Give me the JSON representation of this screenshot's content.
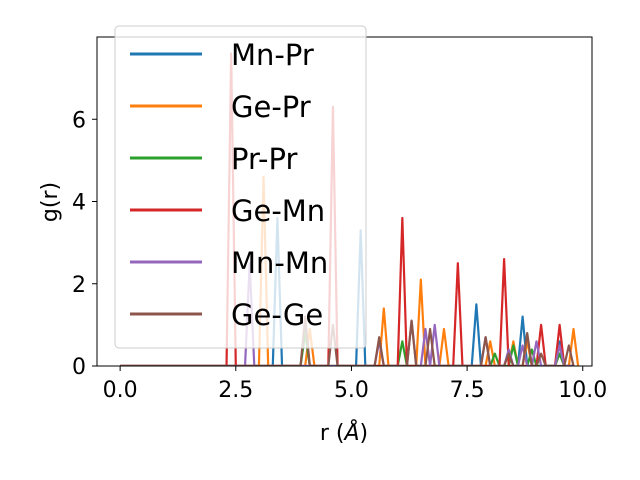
{
  "chart_data": {
    "type": "line",
    "title": "",
    "xlabel": "r (",
    "xlabel_unit": "Å",
    "xlabel_close": ")",
    "ylabel": "g(r)",
    "xlim": [
      -0.5,
      10.2
    ],
    "ylim": [
      0,
      8.0
    ],
    "xticks": [
      0.0,
      2.5,
      5.0,
      7.5,
      10.0
    ],
    "xtick_labels": [
      "0.0",
      "2.5",
      "5.0",
      "7.5",
      "10.0"
    ],
    "yticks": [
      0,
      2,
      4,
      6
    ],
    "ytick_labels": [
      "0",
      "2",
      "4",
      "6"
    ],
    "grid": false,
    "legend_placement": "upper-left",
    "series": [
      {
        "name": "Mn-Pr",
        "color": "#1f77b4",
        "x": [
          0.0,
          2.2,
          2.3,
          2.4,
          2.5,
          2.6,
          2.7,
          2.8,
          2.9,
          3.0,
          3.1,
          3.2,
          3.3,
          3.4,
          3.5,
          3.6,
          3.7,
          3.8,
          3.9,
          4.0,
          4.1,
          4.2,
          4.3,
          4.4,
          4.5,
          4.6,
          4.7,
          4.8,
          4.9,
          5.0,
          5.1,
          5.2,
          5.3,
          5.4,
          5.5,
          5.6,
          5.7,
          5.8,
          5.9,
          6.0,
          6.1,
          6.2,
          6.3,
          6.4,
          6.5,
          6.6,
          6.7,
          6.8,
          6.9,
          7.0,
          7.1,
          7.2,
          7.3,
          7.4,
          7.5,
          7.6,
          7.7,
          7.8,
          7.9,
          8.0,
          8.1,
          8.2,
          8.3,
          8.4,
          8.5,
          8.6,
          8.7,
          8.8,
          8.9,
          9.0,
          9.1,
          9.2,
          9.3,
          9.4,
          9.5,
          9.6,
          9.7,
          9.8
        ],
        "y": [
          0.0,
          0.0,
          0.0,
          0.0,
          0.0,
          0.0,
          0.0,
          0.0,
          0.0,
          0.0,
          0.0,
          0.0,
          0.0,
          3.6,
          0.0,
          0.0,
          0.0,
          0.0,
          0.0,
          1.0,
          0.0,
          0.0,
          0.0,
          0.0,
          0.0,
          0.0,
          0.0,
          0.0,
          0.0,
          0.0,
          0.0,
          3.3,
          0.0,
          0.0,
          0.0,
          0.0,
          0.0,
          0.0,
          0.0,
          0.0,
          0.0,
          0.0,
          0.0,
          0.0,
          0.0,
          0.0,
          0.0,
          0.0,
          0.0,
          0.0,
          0.0,
          0.0,
          0.0,
          0.0,
          0.0,
          0.0,
          1.5,
          0.0,
          0.0,
          0.0,
          0.0,
          0.0,
          0.0,
          0.0,
          0.0,
          0.0,
          1.2,
          0.0,
          0.0,
          0.0,
          0.0,
          0.0,
          0.0,
          0.0,
          0.6,
          0.0,
          0.0,
          0.0
        ]
      },
      {
        "name": "Ge-Pr",
        "color": "#ff7f0e",
        "x": [
          0.0,
          2.8,
          2.9,
          3.0,
          3.1,
          3.2,
          3.3,
          3.4,
          3.5,
          3.6,
          3.7,
          3.8,
          3.9,
          4.0,
          4.1,
          4.2,
          4.3,
          4.4,
          4.5,
          4.6,
          4.7,
          4.8,
          4.9,
          5.0,
          5.1,
          5.2,
          5.3,
          5.4,
          5.5,
          5.6,
          5.7,
          5.8,
          5.9,
          6.0,
          6.1,
          6.2,
          6.3,
          6.4,
          6.5,
          6.6,
          6.7,
          6.8,
          6.9,
          7.0,
          7.1,
          7.2,
          7.3,
          7.4,
          7.5,
          7.6,
          7.7,
          7.8,
          7.9,
          8.0,
          8.1,
          8.2,
          8.3,
          8.4,
          8.5,
          8.6,
          8.7,
          8.8,
          8.9,
          9.0,
          9.1,
          9.2,
          9.3,
          9.4,
          9.5,
          9.6,
          9.7,
          9.8,
          9.9
        ],
        "y": [
          0.0,
          0.0,
          0.0,
          0.0,
          4.6,
          0.0,
          0.0,
          0.0,
          0.0,
          0.0,
          0.0,
          0.0,
          0.0,
          0.0,
          0.9,
          0.0,
          0.0,
          0.0,
          0.0,
          0.0,
          0.0,
          0.0,
          0.0,
          0.0,
          0.0,
          0.0,
          0.0,
          0.0,
          0.0,
          0.0,
          1.4,
          0.0,
          0.0,
          0.0,
          0.0,
          0.0,
          0.0,
          0.0,
          2.1,
          0.0,
          0.0,
          0.0,
          0.0,
          0.9,
          0.0,
          0.0,
          0.0,
          0.0,
          0.0,
          0.0,
          0.0,
          0.0,
          0.0,
          0.6,
          0.0,
          0.0,
          0.0,
          0.0,
          0.6,
          0.0,
          0.0,
          0.6,
          0.0,
          0.0,
          0.0,
          0.0,
          0.0,
          0.0,
          0.3,
          0.0,
          0.0,
          0.9,
          0.0
        ]
      },
      {
        "name": "Pr-Pr",
        "color": "#2ca02c",
        "x": [
          0.0,
          3.9,
          4.0,
          4.1,
          4.2,
          5.9,
          6.0,
          6.1,
          6.2,
          8.0,
          8.1,
          8.2,
          8.3,
          8.4,
          8.5,
          8.6,
          8.7,
          8.8,
          8.9,
          9.0,
          9.1,
          9.2,
          9.3,
          9.4,
          9.5,
          9.6,
          9.7,
          9.8
        ],
        "y": [
          0.0,
          0.0,
          0.8,
          0.0,
          0.0,
          0.0,
          0.0,
          0.6,
          0.0,
          0.0,
          0.3,
          0.0,
          0.0,
          0.0,
          0.5,
          0.0,
          0.0,
          0.0,
          0.4,
          0.0,
          0.0,
          0.0,
          0.0,
          0.0,
          0.3,
          0.0,
          0.0,
          0.0
        ]
      },
      {
        "name": "Ge-Mn",
        "color": "#d62728",
        "x": [
          0.0,
          2.2,
          2.3,
          2.4,
          2.5,
          2.6,
          4.4,
          4.5,
          4.6,
          4.7,
          4.8,
          5.9,
          6.0,
          6.1,
          6.2,
          6.3,
          6.4,
          6.5,
          6.6,
          6.7,
          6.8,
          6.9,
          7.0,
          7.1,
          7.2,
          7.3,
          7.4,
          7.5,
          7.6,
          7.7,
          7.8,
          7.9,
          8.0,
          8.1,
          8.2,
          8.3,
          8.4,
          8.5,
          8.6,
          8.7,
          8.8,
          8.9,
          9.0,
          9.1,
          9.2,
          9.3,
          9.4,
          9.5,
          9.6,
          9.7,
          9.8
        ],
        "y": [
          0.0,
          0.0,
          0.0,
          7.6,
          0.0,
          0.0,
          0.0,
          0.0,
          6.3,
          0.0,
          0.0,
          0.0,
          0.0,
          3.6,
          0.0,
          0.0,
          0.0,
          0.0,
          0.0,
          0.0,
          0.0,
          0.0,
          0.0,
          0.0,
          0.0,
          2.5,
          0.0,
          0.0,
          0.0,
          0.0,
          0.0,
          0.0,
          0.0,
          0.0,
          0.0,
          2.6,
          0.0,
          0.0,
          0.0,
          0.0,
          0.0,
          0.0,
          0.0,
          1.0,
          0.0,
          0.0,
          0.0,
          1.0,
          0.0,
          0.0,
          0.0
        ]
      },
      {
        "name": "Mn-Mn",
        "color": "#9467bd",
        "x": [
          0.0,
          2.6,
          2.7,
          2.8,
          2.9,
          3.0,
          5.4,
          5.5,
          5.6,
          5.7,
          5.8,
          6.2,
          6.3,
          6.4,
          6.5,
          6.6,
          6.7,
          6.8,
          6.9,
          7.0,
          7.1,
          7.7,
          7.8,
          7.9,
          8.0,
          8.1,
          8.2,
          8.3,
          8.4,
          8.5,
          8.6,
          8.7,
          8.8,
          8.9,
          9.0,
          9.1,
          9.2,
          9.3,
          9.4,
          9.5,
          9.6,
          9.7,
          9.8
        ],
        "y": [
          0.0,
          0.0,
          0.0,
          2.5,
          0.0,
          0.0,
          0.0,
          0.0,
          0.6,
          0.0,
          0.0,
          0.0,
          1.1,
          0.0,
          0.0,
          0.9,
          0.0,
          1.0,
          0.0,
          0.0,
          0.0,
          0.0,
          0.0,
          0.7,
          0.0,
          0.0,
          0.0,
          0.0,
          0.4,
          0.0,
          0.0,
          0.5,
          0.0,
          0.0,
          0.6,
          0.0,
          0.0,
          0.0,
          0.0,
          0.5,
          0.0,
          0.0,
          0.0
        ]
      },
      {
        "name": "Ge-Ge",
        "color": "#8c564b",
        "x": [
          0.0,
          3.8,
          3.9,
          4.0,
          4.1,
          4.2,
          4.4,
          4.5,
          4.6,
          4.7,
          4.8,
          5.4,
          5.5,
          5.6,
          5.7,
          5.8,
          6.2,
          6.3,
          6.4,
          6.5,
          6.6,
          6.7,
          6.8,
          6.9,
          7.0,
          7.1,
          7.2,
          7.3,
          7.4,
          7.5,
          7.6,
          7.7,
          7.8,
          7.9,
          8.0,
          8.1,
          8.2,
          8.3,
          8.4,
          8.5,
          8.6,
          8.7,
          8.8,
          8.9,
          9.0,
          9.1,
          9.2,
          9.3,
          9.4,
          9.5,
          9.6,
          9.7,
          9.8
        ],
        "y": [
          0.0,
          0.0,
          0.0,
          1.2,
          0.0,
          0.0,
          0.0,
          0.0,
          1.0,
          0.0,
          0.0,
          0.0,
          0.0,
          0.7,
          0.0,
          0.0,
          0.0,
          1.1,
          0.0,
          0.0,
          0.0,
          0.9,
          0.0,
          0.0,
          0.0,
          0.0,
          0.0,
          0.0,
          0.0,
          0.0,
          0.0,
          0.0,
          0.0,
          0.7,
          0.0,
          0.0,
          0.0,
          0.0,
          0.3,
          0.0,
          0.0,
          0.0,
          0.8,
          0.0,
          0.0,
          0.3,
          0.0,
          0.0,
          0.0,
          0.0,
          0.0,
          0.5,
          0.0
        ]
      }
    ]
  }
}
